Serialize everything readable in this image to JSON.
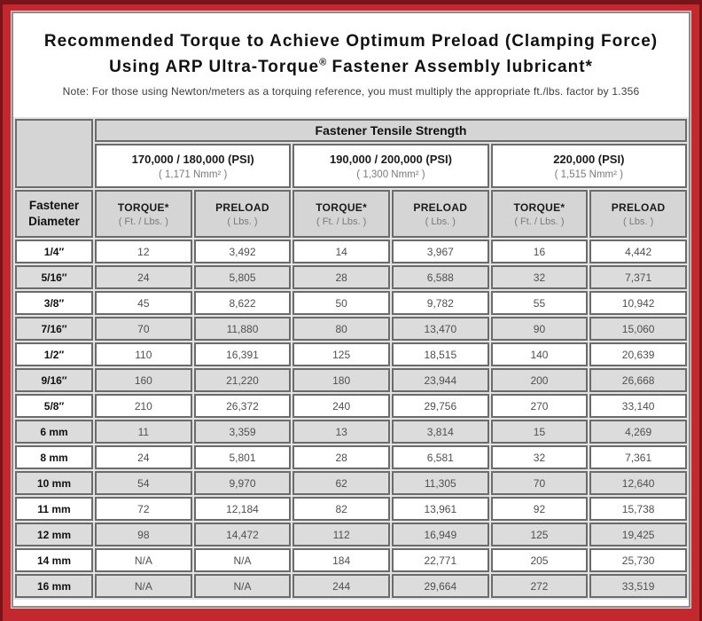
{
  "colors": {
    "frame_red": "#c2282e",
    "frame_dark_red": "#7a141a",
    "card_border_gray": "#8b8b8b",
    "header_gray": "#d5d5d5",
    "row_alt_gray": "#dcdcdc",
    "cell_border_gray": "#6b6b6b",
    "value_text_gray": "#4f4f4f"
  },
  "header": {
    "title_line1": "Recommended Torque to Achieve Optimum Preload (Clamping Force)",
    "title_line2_a": "Using ARP Ultra-Torque",
    "title_reg": "®",
    "title_line2_b": " Fastener Assembly lubricant*",
    "note": "Note: For those using Newton/meters as a torquing reference, you must multiply the appropriate ft./lbs. factor by 1.356"
  },
  "table": {
    "tensile_header": "Fastener Tensile Strength",
    "diameter_header": "Fastener Diameter",
    "groups": [
      {
        "psi": "170,000 / 180,000 (PSI)",
        "nmm": "( 1,171 Nmm² )"
      },
      {
        "psi": "190,000 / 200,000 (PSI)",
        "nmm": "( 1,300 Nmm² )"
      },
      {
        "psi": "220,000 (PSI)",
        "nmm": "( 1,515 Nmm² )"
      }
    ],
    "torque_label": "TORQUE*",
    "torque_sub": "( Ft. / Lbs. )",
    "preload_label": "PRELOAD",
    "preload_sub": "( Lbs. )",
    "rows": [
      {
        "d": "1/4″",
        "v": [
          "12",
          "3,492",
          "14",
          "3,967",
          "16",
          "4,442"
        ]
      },
      {
        "d": "5/16″",
        "v": [
          "24",
          "5,805",
          "28",
          "6,588",
          "32",
          "7,371"
        ]
      },
      {
        "d": "3/8″",
        "v": [
          "45",
          "8,622",
          "50",
          "9,782",
          "55",
          "10,942"
        ]
      },
      {
        "d": "7/16″",
        "v": [
          "70",
          "11,880",
          "80",
          "13,470",
          "90",
          "15,060"
        ]
      },
      {
        "d": "1/2″",
        "v": [
          "110",
          "16,391",
          "125",
          "18,515",
          "140",
          "20,639"
        ]
      },
      {
        "d": "9/16″",
        "v": [
          "160",
          "21,220",
          "180",
          "23,944",
          "200",
          "26,668"
        ]
      },
      {
        "d": "5/8″",
        "v": [
          "210",
          "26,372",
          "240",
          "29,756",
          "270",
          "33,140"
        ]
      },
      {
        "d": "6 mm",
        "v": [
          "11",
          "3,359",
          "13",
          "3,814",
          "15",
          "4,269"
        ]
      },
      {
        "d": "8 mm",
        "v": [
          "24",
          "5,801",
          "28",
          "6,581",
          "32",
          "7,361"
        ]
      },
      {
        "d": "10 mm",
        "v": [
          "54",
          "9,970",
          "62",
          "11,305",
          "70",
          "12,640"
        ]
      },
      {
        "d": "11 mm",
        "v": [
          "72",
          "12,184",
          "82",
          "13,961",
          "92",
          "15,738"
        ]
      },
      {
        "d": "12 mm",
        "v": [
          "98",
          "14,472",
          "112",
          "16,949",
          "125",
          "19,425"
        ]
      },
      {
        "d": "14 mm",
        "v": [
          "N/A",
          "N/A",
          "184",
          "22,771",
          "205",
          "25,730"
        ]
      },
      {
        "d": "16 mm",
        "v": [
          "N/A",
          "N/A",
          "244",
          "29,664",
          "272",
          "33,519"
        ]
      }
    ]
  }
}
